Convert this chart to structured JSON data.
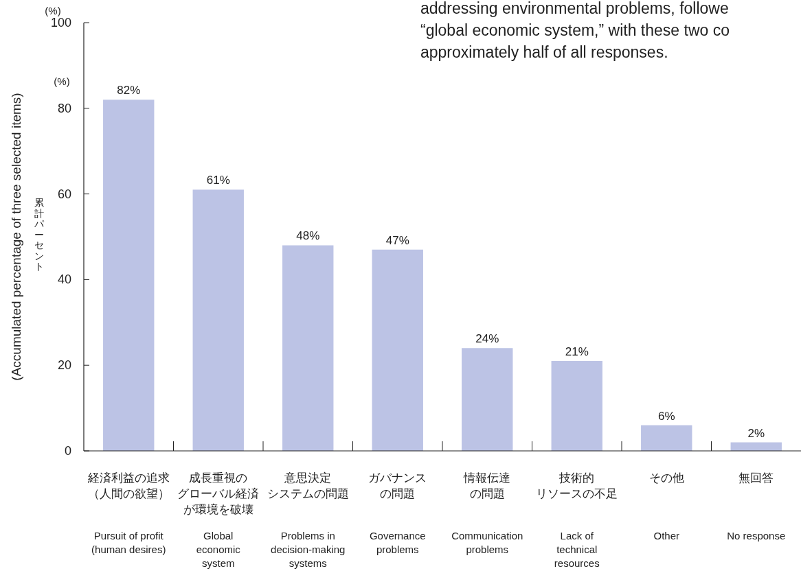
{
  "chart_data": {
    "type": "bar",
    "categories": [
      "経済利益の追求（人間の欲望）\nPursuit of profit\n(human desires)",
      "成長重視のグローバル経済が環境を破壊\nGlobal\neconomic\nsystem",
      "意思決定システムの問題\nProblems in\ndecision-making\nsystems",
      "ガバナンスの問題\nGovernance\nproblems",
      "情報伝達の問題\nCommunication\nproblems",
      "技術的リソースの不足\nLack of\ntechnical\nresources",
      "その他\nOther",
      "無回答\nNo response"
    ],
    "values": [
      82,
      61,
      48,
      47,
      24,
      21,
      6,
      2
    ],
    "value_labels": [
      "82%",
      "61%",
      "48%",
      "47%",
      "24%",
      "21%",
      "6%",
      "2%"
    ],
    "color": "#bcc3e5",
    "ylim": [
      0,
      100
    ],
    "yticks": [
      0,
      20,
      40,
      60,
      80,
      100
    ],
    "ylabel": "(Accumulated percentage of three selected items)",
    "annotations": [
      "(%)",
      "(%)",
      "累計パーセント",
      "addressing environmental problems, followe",
      "“global economic system,” with these two co",
      "approximately half of all responses."
    ],
    "grid": false
  }
}
